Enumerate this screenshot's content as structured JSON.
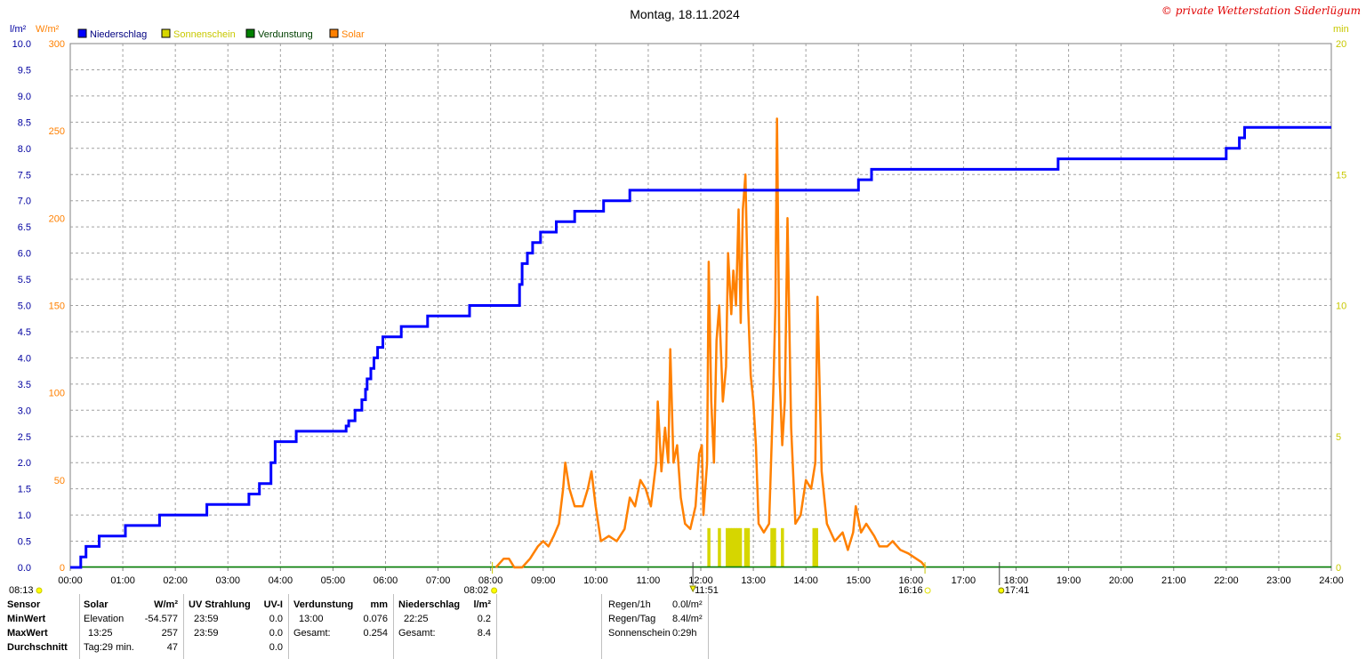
{
  "chart_data": {
    "type": "line",
    "title": "Montag, 18.11.2024",
    "copyright": "© private Wetterstation Süderlügum",
    "legend": [
      {
        "name": "Niederschlag",
        "color": "#0000ff"
      },
      {
        "name": "Sonnenschein",
        "color": "#d6d600"
      },
      {
        "name": "Verdunstung",
        "color": "#008000"
      },
      {
        "name": "Solar",
        "color": "#ff8000"
      }
    ],
    "axes": {
      "left_precip": {
        "unit": "l/m²",
        "range": [
          0,
          10
        ],
        "ticks": [
          "0.0",
          "0.5",
          "1.0",
          "1.5",
          "2.0",
          "2.5",
          "3.0",
          "3.5",
          "4.0",
          "4.5",
          "5.0",
          "5.5",
          "6.0",
          "6.5",
          "7.0",
          "7.5",
          "8.0",
          "8.5",
          "9.0",
          "9.5",
          "10.0"
        ],
        "color": "#0000a0"
      },
      "left_solar": {
        "unit": "W/m²",
        "range": [
          0,
          300
        ],
        "ticks": [
          "0",
          "50",
          "100",
          "150",
          "200",
          "250",
          "300"
        ],
        "color": "#ff8000"
      },
      "right_sun": {
        "unit": "min",
        "range": [
          0,
          20
        ],
        "ticks": [
          "0",
          "5",
          "10",
          "15",
          "20"
        ],
        "color": "#c8c800"
      },
      "x": {
        "range": [
          0,
          24
        ],
        "ticks": [
          "00:00",
          "01:00",
          "02:00",
          "03:00",
          "04:00",
          "05:00",
          "06:00",
          "07:00",
          "08:00",
          "09:00",
          "10:00",
          "11:00",
          "12:00",
          "13:00",
          "14:00",
          "15:00",
          "16:00",
          "17:00",
          "18:00",
          "19:00",
          "20:00",
          "21:00",
          "22:00",
          "23:00",
          "24:00"
        ]
      }
    },
    "markers": {
      "moonrise": "08:13",
      "sunrise": "08:02",
      "noon": "11:51",
      "sunset": "16:16",
      "moonset": "17:41"
    },
    "precipitation_steps": [
      [
        0,
        0
      ],
      [
        0.17,
        0
      ],
      [
        0.2,
        0.2
      ],
      [
        0.3,
        0.4
      ],
      [
        0.55,
        0.6
      ],
      [
        1.05,
        0.8
      ],
      [
        1.7,
        1.0
      ],
      [
        2.6,
        1.2
      ],
      [
        3.4,
        1.4
      ],
      [
        3.6,
        1.6
      ],
      [
        3.82,
        2.0
      ],
      [
        3.9,
        2.4
      ],
      [
        4.3,
        2.6
      ],
      [
        5.25,
        2.7
      ],
      [
        5.3,
        2.8
      ],
      [
        5.42,
        3.0
      ],
      [
        5.55,
        3.2
      ],
      [
        5.62,
        3.4
      ],
      [
        5.65,
        3.6
      ],
      [
        5.72,
        3.8
      ],
      [
        5.78,
        4.0
      ],
      [
        5.85,
        4.2
      ],
      [
        5.95,
        4.4
      ],
      [
        6.3,
        4.6
      ],
      [
        6.8,
        4.8
      ],
      [
        7.6,
        5.0
      ],
      [
        8.5,
        5.0
      ],
      [
        8.55,
        5.4
      ],
      [
        8.6,
        5.8
      ],
      [
        8.7,
        6.0
      ],
      [
        8.8,
        6.2
      ],
      [
        8.95,
        6.4
      ],
      [
        9.25,
        6.6
      ],
      [
        9.6,
        6.8
      ],
      [
        10.15,
        7.0
      ],
      [
        10.65,
        7.2
      ],
      [
        15.0,
        7.4
      ],
      [
        15.25,
        7.6
      ],
      [
        18.8,
        7.8
      ],
      [
        22.0,
        8.0
      ],
      [
        22.25,
        8.2
      ],
      [
        22.35,
        8.4
      ],
      [
        24,
        8.4
      ]
    ],
    "solar": [
      [
        8.1,
        0
      ],
      [
        8.25,
        5
      ],
      [
        8.35,
        5
      ],
      [
        8.45,
        0
      ],
      [
        8.6,
        0
      ],
      [
        8.75,
        5
      ],
      [
        8.9,
        12
      ],
      [
        9.0,
        15
      ],
      [
        9.1,
        12
      ],
      [
        9.2,
        18
      ],
      [
        9.3,
        25
      ],
      [
        9.38,
        45
      ],
      [
        9.42,
        60
      ],
      [
        9.5,
        45
      ],
      [
        9.6,
        35
      ],
      [
        9.75,
        35
      ],
      [
        9.85,
        45
      ],
      [
        9.92,
        55
      ],
      [
        10.0,
        35
      ],
      [
        10.1,
        15
      ],
      [
        10.25,
        18
      ],
      [
        10.4,
        15
      ],
      [
        10.55,
        22
      ],
      [
        10.65,
        40
      ],
      [
        10.75,
        35
      ],
      [
        10.85,
        50
      ],
      [
        10.95,
        45
      ],
      [
        11.05,
        35
      ],
      [
        11.15,
        60
      ],
      [
        11.18,
        95
      ],
      [
        11.25,
        55
      ],
      [
        11.32,
        80
      ],
      [
        11.38,
        60
      ],
      [
        11.42,
        125
      ],
      [
        11.48,
        60
      ],
      [
        11.55,
        70
      ],
      [
        11.62,
        40
      ],
      [
        11.7,
        25
      ],
      [
        11.8,
        22
      ],
      [
        11.9,
        35
      ],
      [
        11.97,
        65
      ],
      [
        12.02,
        70
      ],
      [
        12.05,
        30
      ],
      [
        12.12,
        60
      ],
      [
        12.15,
        175
      ],
      [
        12.2,
        95
      ],
      [
        12.25,
        60
      ],
      [
        12.3,
        130
      ],
      [
        12.35,
        150
      ],
      [
        12.42,
        95
      ],
      [
        12.48,
        115
      ],
      [
        12.52,
        180
      ],
      [
        12.58,
        145
      ],
      [
        12.62,
        170
      ],
      [
        12.67,
        150
      ],
      [
        12.72,
        205
      ],
      [
        12.76,
        140
      ],
      [
        12.8,
        205
      ],
      [
        12.85,
        225
      ],
      [
        12.9,
        150
      ],
      [
        12.95,
        110
      ],
      [
        13.0,
        95
      ],
      [
        13.05,
        70
      ],
      [
        13.1,
        25
      ],
      [
        13.2,
        20
      ],
      [
        13.3,
        25
      ],
      [
        13.38,
        100
      ],
      [
        13.42,
        150
      ],
      [
        13.45,
        257
      ],
      [
        13.5,
        110
      ],
      [
        13.55,
        70
      ],
      [
        13.6,
        95
      ],
      [
        13.65,
        200
      ],
      [
        13.72,
        80
      ],
      [
        13.8,
        25
      ],
      [
        13.9,
        30
      ],
      [
        14.0,
        50
      ],
      [
        14.1,
        45
      ],
      [
        14.18,
        60
      ],
      [
        14.22,
        155
      ],
      [
        14.3,
        55
      ],
      [
        14.4,
        25
      ],
      [
        14.55,
        15
      ],
      [
        14.7,
        20
      ],
      [
        14.8,
        10
      ],
      [
        14.9,
        20
      ],
      [
        14.95,
        35
      ],
      [
        15.05,
        20
      ],
      [
        15.15,
        25
      ],
      [
        15.3,
        18
      ],
      [
        15.4,
        12
      ],
      [
        15.55,
        12
      ],
      [
        15.65,
        15
      ],
      [
        15.8,
        10
      ],
      [
        15.95,
        8
      ],
      [
        16.1,
        5
      ],
      [
        16.2,
        3
      ],
      [
        16.28,
        0
      ]
    ],
    "sunshine_bars": [
      [
        12.15,
        1
      ],
      [
        12.35,
        1
      ],
      [
        12.5,
        1
      ],
      [
        12.55,
        1
      ],
      [
        12.6,
        1
      ],
      [
        12.65,
        1
      ],
      [
        12.7,
        1
      ],
      [
        12.75,
        1
      ],
      [
        12.85,
        1
      ],
      [
        12.9,
        1
      ],
      [
        13.35,
        1
      ],
      [
        13.4,
        1
      ],
      [
        13.55,
        1
      ],
      [
        14.15,
        1
      ],
      [
        14.2,
        1
      ]
    ],
    "table": {
      "headers": [
        "Sensor",
        "Solar",
        "W/m²",
        "UV Strahlung",
        "UV-I",
        "Verdunstung",
        "mm",
        "Niederschlag",
        "l/m²"
      ],
      "rows": [
        {
          "label": "MinWert",
          "solar_time": "Elevation",
          "solar_val": "-54.577",
          "uv_time": "23:59",
          "uv_val": "0.0",
          "ev_time": "",
          "ev_val": "",
          "pr_time": "",
          "pr_val": ""
        },
        {
          "label": "MaxWert",
          "solar_time": "13:25",
          "solar_val": "257",
          "uv_time": "23:59",
          "uv_val": "0.0",
          "ev_time": "13:00",
          "ev_val": "0.076",
          "pr_time": "22:25",
          "pr_val": "0.2"
        },
        {
          "label": "Durchschnitt",
          "solar_time": "Tag:29 min.",
          "solar_val": "47",
          "uv_time": "",
          "uv_val": "0.0",
          "ev_time": "Gesamt:",
          "ev_val": "0.254",
          "pr_time": "Gesamt:",
          "pr_val": "8.4"
        }
      ],
      "summary": [
        {
          "label": "Regen/1h",
          "value": "0.0l/m²"
        },
        {
          "label": "Regen/Tag",
          "value": "8.4l/m²"
        },
        {
          "label": "Sonnenschein",
          "value": "0:29h"
        }
      ]
    }
  }
}
